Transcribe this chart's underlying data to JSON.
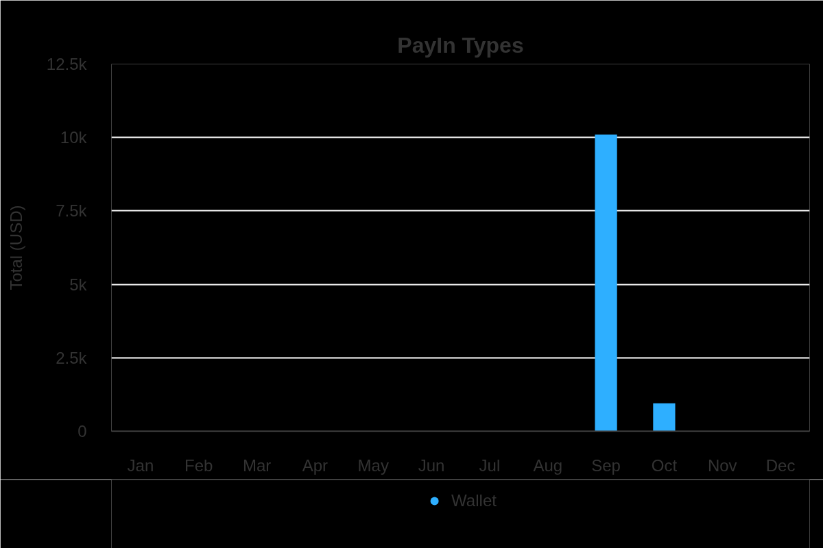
{
  "chart_data": {
    "type": "bar",
    "title": "PayIn Types",
    "ylabel": "Total (USD)",
    "categories": [
      "Jan",
      "Feb",
      "Mar",
      "Apr",
      "May",
      "Jun",
      "Jul",
      "Aug",
      "Sep",
      "Oct",
      "Nov",
      "Dec"
    ],
    "series": [
      {
        "name": "Wallet",
        "color": "#2eafff",
        "values": [
          null,
          null,
          null,
          null,
          null,
          null,
          null,
          null,
          10100,
          950,
          null,
          null
        ]
      }
    ],
    "ylim": [
      0,
      12500
    ],
    "yticks": [
      0,
      {
        "value": 2500,
        "label": "2.5k"
      },
      {
        "value": 5000,
        "label": "5k"
      },
      {
        "value": 7500,
        "label": "7.5k"
      },
      {
        "value": 10000,
        "label": "10k"
      },
      {
        "value": 12500,
        "label": "12.5k"
      }
    ],
    "grid": "y",
    "legend": "bottom"
  }
}
